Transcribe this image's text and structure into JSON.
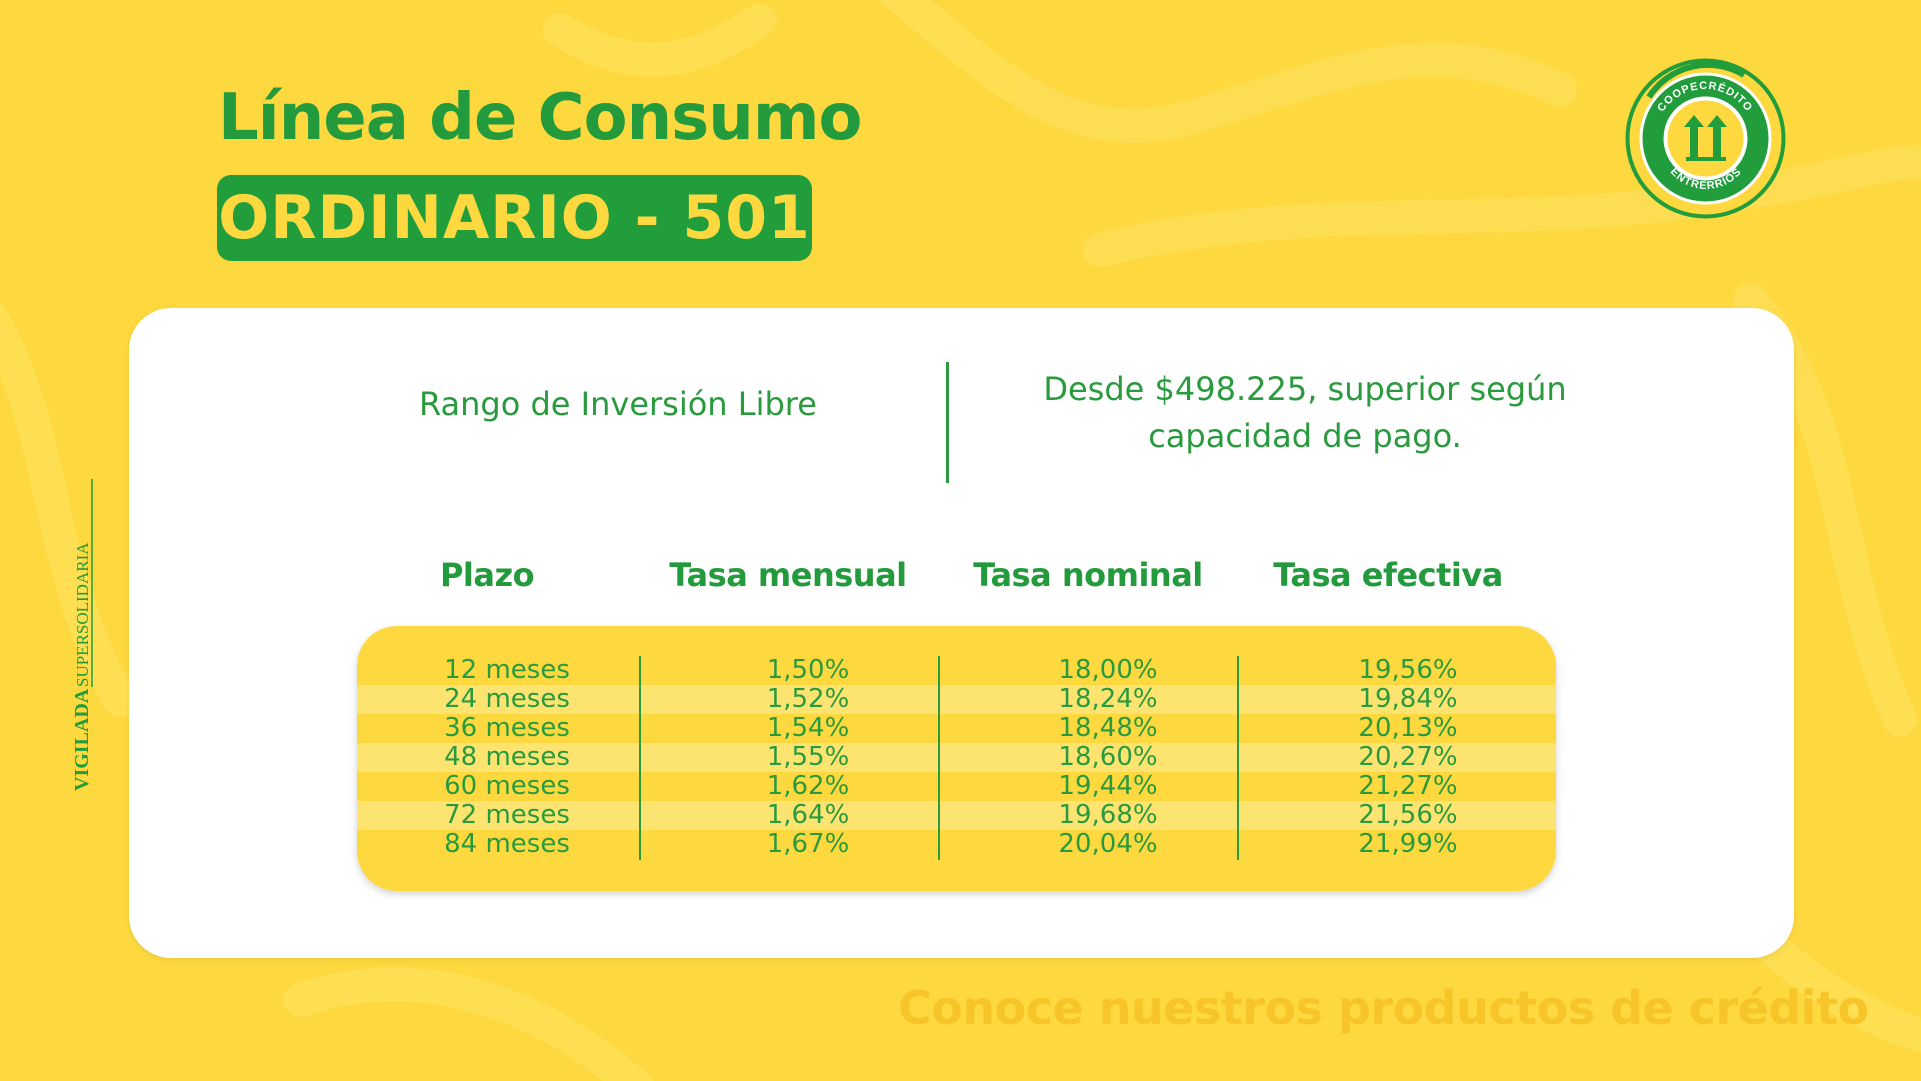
{
  "header": {
    "title": "Línea de Consumo",
    "badge": "ORDINARIO - 501"
  },
  "logo": {
    "top_text": "COOPECRÉDITO",
    "bottom_text": "ENTRERRIOS"
  },
  "side_label": {
    "line1": "VIGILADA",
    "line2": "SUPERSOLIDARIA"
  },
  "investment": {
    "label": "Rango de Inversión Libre",
    "value_line1": "Desde $498.225, superior según",
    "value_line2": "capacidad de pago."
  },
  "table": {
    "headers": [
      "Plazo",
      "Tasa mensual",
      "Tasa nominal",
      "Tasa efectiva"
    ],
    "rows": [
      [
        "12 meses",
        "1,50%",
        "18,00%",
        "19,56%"
      ],
      [
        "24 meses",
        "1,52%",
        "18,24%",
        "19,84%"
      ],
      [
        "36 meses",
        "1,54%",
        "18,48%",
        "20,13%"
      ],
      [
        "48 meses",
        "1,55%",
        "18,60%",
        "20,27%"
      ],
      [
        "60 meses",
        "1,62%",
        "19,44%",
        "21,27%"
      ],
      [
        "72 meses",
        "1,64%",
        "19,68%",
        "21,56%"
      ],
      [
        "84 meses",
        "1,67%",
        "20,04%",
        "21,99%"
      ]
    ]
  },
  "footer": {
    "cta": "Conoce nuestros productos de crédito"
  },
  "colors": {
    "background": "#fdd93f",
    "brand_green": "#219d3c",
    "card": "#ffffff",
    "row_alt": "#fde471",
    "cta": "#f7c52a"
  }
}
